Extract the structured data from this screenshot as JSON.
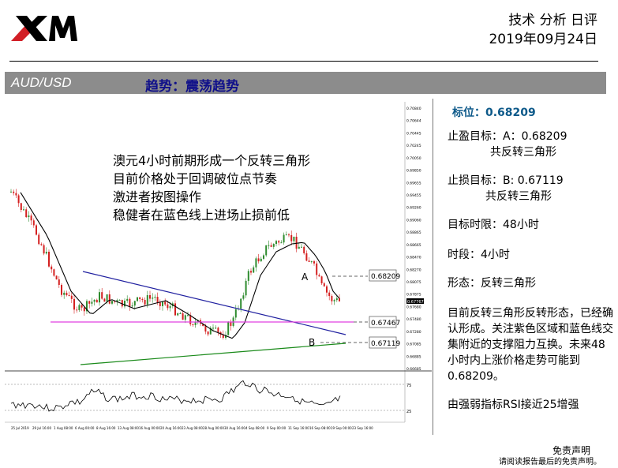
{
  "header": {
    "logo_text": "XM",
    "title": "技术 分析 日评",
    "date": "2019年09月24日",
    "underline": "—————————————————————————————————————————————————————"
  },
  "bar": {
    "symbol": "AUD/USD",
    "trend": "趋势：震荡趋势"
  },
  "chart": {
    "annotation_lines": [
      "澳元4小时前期形成一个反转三角形",
      "目前价格处于回调破位点节奏",
      "激进者按图操作",
      "稳健者在蓝色线上进场止损前低"
    ],
    "point_a": "A",
    "point_b": "B",
    "level_a": "0.68209",
    "level_mid": "0.67467",
    "level_b": "0.67119",
    "price_ticks": [
      "0.70840",
      "0.70644",
      "0.70445",
      "0.70245",
      "0.70050",
      "0.69850",
      "0.69655",
      "0.69455",
      "0.69260",
      "0.69060",
      "0.68865",
      "0.68665",
      "0.68470",
      "0.68270",
      "0.68075",
      "0.67875",
      "0.67680",
      "0.67480",
      "0.67280",
      "0.67085",
      "0.66885",
      "0.66685"
    ],
    "current_price": "0.67767",
    "rsi_ticks": [
      "75",
      "25"
    ],
    "time_ticks": [
      "25 Jul 2019",
      "29 Jul 16:00",
      "1 Aug 08:00",
      "6 Aug 00:00",
      "8 Aug 16:00",
      "13 Aug 08:00",
      "16 Aug 00:00",
      "20 Aug 16:00",
      "23 Aug 08:00",
      "28 Aug 00:00",
      "30 Aug 16:00",
      "4 Sep 08:00",
      "9 Sep 00:00",
      "11 Sep 16:00",
      "16 Sep 08:00",
      "19 Sep 00:00",
      "23 Sep 16:00"
    ],
    "colors": {
      "candle_up": "#2e8b2e",
      "candle_down": "#d42020",
      "ma": "#000000",
      "blue_line": "#2020a0",
      "green_line": "#1a8a1a",
      "magenta_line": "#e040e0"
    }
  },
  "chart_data": {
    "type": "candlestick",
    "title": "",
    "series": [
      {
        "name": "",
        "values": []
      }
    ],
    "levels": [
      0.68209,
      0.67467,
      0.67119
    ],
    "ylim": [
      0.66685,
      0.7084
    ]
  },
  "side": {
    "level_label": "标位：0.68209",
    "tp_label": "止盈目标：A：0.68209",
    "tp_sub": "共反转三角形",
    "sl_label": "止损目标：B: 0.67119",
    "sl_sub": "共反转三角形",
    "time_limit": "目标时限：48小时",
    "period": "时段：4小时",
    "pattern": "形态：反转三角形",
    "analysis": "目前反转三角形反转形态，已经确认形成。关注紫色区域和蓝色线交集附近的支撑阻力互换。未来48小时内上涨价格走势可能到0.68209。",
    "rsi_note": "由强弱指标RSI接近25增强"
  },
  "footer": {
    "disclaimer_title": "免责声明",
    "disclaimer_text": "请阅读报告最后的免责声明。"
  }
}
